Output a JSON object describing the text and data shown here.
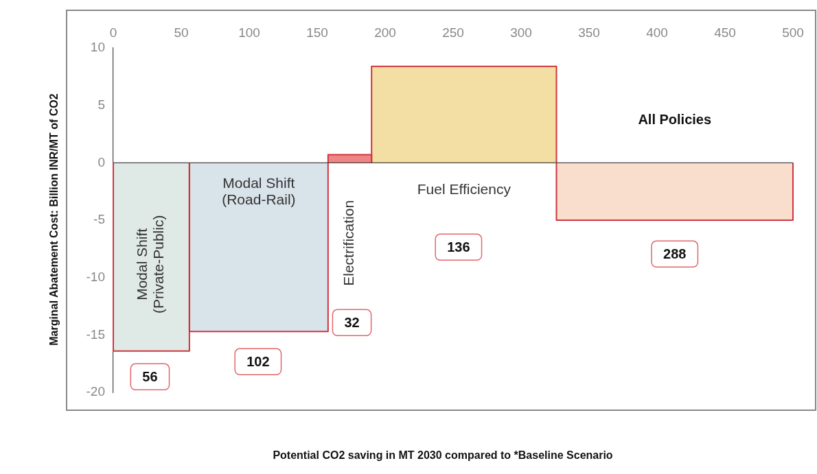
{
  "chart_data": {
    "type": "histogram",
    "ylabel": "Marginal Abatement Cost: Billion INR/MT of CO2",
    "xlabel": "Potential CO2 saving in MT 2030 compared to *Baseline Scenario",
    "bins": [
      0,
      56,
      158,
      190,
      326,
      500
    ],
    "values": [
      -16.4,
      -14.7,
      0.7,
      8.4,
      -5
    ],
    "colors": [
      "#dfe9e5",
      "#d9e3ea",
      "#f08585",
      "#f3dfa3",
      "#f9ddcd"
    ],
    "xlim": [
      0,
      500
    ],
    "xticks": [
      0,
      50,
      100,
      150,
      200,
      250,
      300,
      350,
      400,
      450,
      500
    ],
    "ylim": [
      -20,
      10
    ],
    "yticks": [
      -20,
      -15,
      -10,
      -5,
      0,
      5,
      10
    ],
    "ref_lines": [
      {
        "axis": "y",
        "value": 0
      }
    ],
    "annotations": [
      "Modal Shift (Private-Public)",
      "Modal Shift (Road-Rail)",
      "Electrification",
      "Fuel Efficiency",
      "All Policies",
      "56",
      "102",
      "32",
      "136",
      "288"
    ]
  }
}
